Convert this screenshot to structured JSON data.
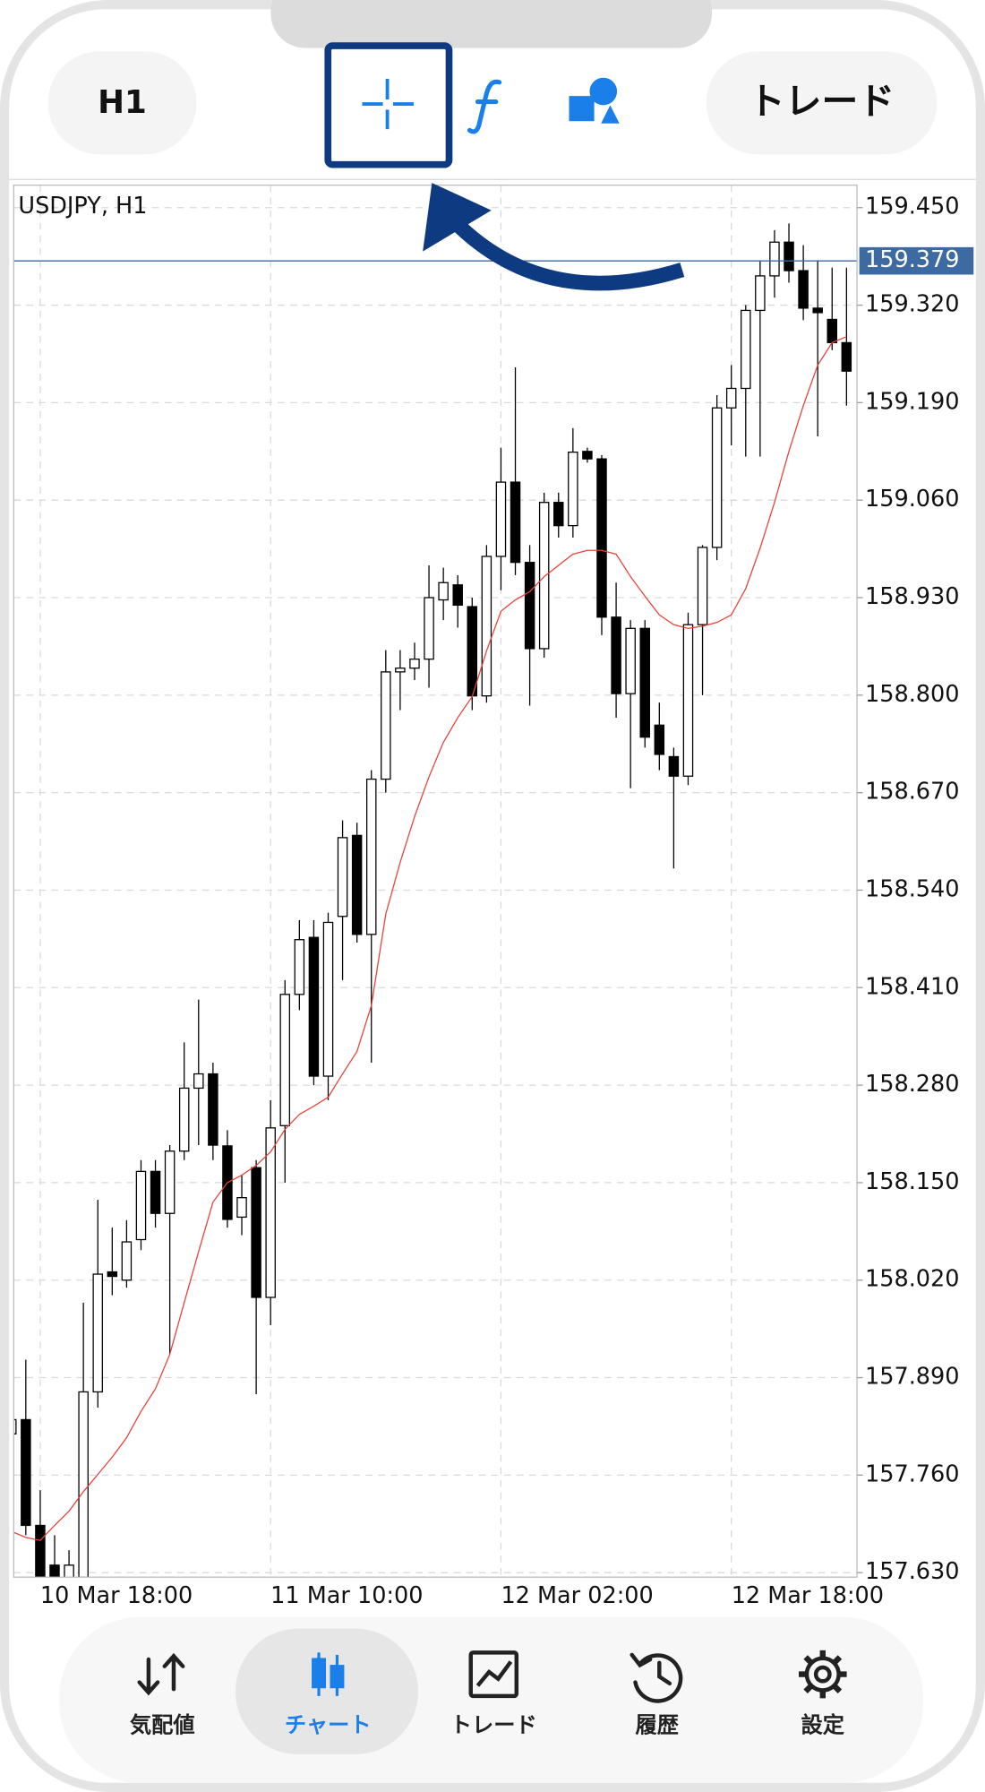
{
  "toolbar": {
    "timeframe": "H1",
    "trade_button": "トレード"
  },
  "chart_data": {
    "type": "candlestick",
    "title": "USDJPY, H1",
    "categories": [
      null,
      null,
      "10 Mar 18:00",
      null,
      null,
      null,
      null,
      null,
      null,
      null,
      null,
      null,
      null,
      null,
      null,
      null,
      null,
      null,
      "11 Mar 10:00",
      null,
      null,
      null,
      null,
      null,
      null,
      null,
      null,
      null,
      null,
      null,
      null,
      null,
      null,
      null,
      "12 Mar 02:00",
      null,
      null,
      null,
      null,
      null,
      null,
      null,
      null,
      null,
      null,
      null,
      null,
      null,
      null,
      null,
      "12 Mar 18:00",
      null,
      null,
      null,
      null,
      null,
      null,
      null,
      null
    ],
    "open": [
      157.815,
      157.834,
      157.693,
      157.64,
      157.61,
      157.624,
      157.871,
      158.031,
      158.02,
      158.074,
      158.165,
      158.109,
      158.192,
      158.276,
      158.295,
      158.199,
      158.104,
      158.17,
      157.997,
      158.226,
      158.401,
      158.477,
      158.292,
      158.505,
      158.613,
      158.481,
      158.688,
      158.831,
      158.836,
      158.848,
      158.927,
      158.947,
      158.918,
      158.799,
      158.985,
      159.084,
      158.977,
      158.862,
      159.057,
      159.026,
      159.125,
      159.115,
      158.904,
      158.802,
      158.889,
      158.76,
      158.718,
      158.692,
      158.894,
      158.997,
      159.183,
      159.209,
      159.313,
      159.359,
      159.404,
      159.366,
      159.316,
      159.301,
      159.27
    ],
    "high": [
      157.84,
      157.914,
      157.74,
      157.68,
      157.66,
      157.99,
      158.127,
      158.09,
      158.1,
      158.18,
      158.18,
      158.2,
      158.337,
      158.394,
      158.31,
      158.22,
      158.16,
      158.18,
      158.26,
      158.42,
      158.5,
      158.5,
      158.51,
      158.633,
      158.63,
      158.7,
      158.86,
      158.86,
      158.87,
      158.973,
      158.97,
      158.96,
      158.93,
      159.0,
      159.13,
      159.237,
      159.0,
      159.07,
      159.07,
      159.156,
      159.13,
      159.12,
      158.95,
      158.9,
      158.9,
      158.79,
      158.73,
      158.91,
      159.0,
      159.2,
      159.24,
      159.32,
      159.38,
      159.42,
      159.429,
      159.4,
      159.38,
      159.37,
      159.37
    ],
    "low": [
      157.8,
      157.68,
      157.6,
      157.6,
      157.6,
      157.6,
      157.85,
      158.0,
      158.01,
      158.06,
      158.09,
      157.921,
      158.18,
      158.2,
      158.18,
      158.09,
      158.08,
      157.868,
      157.96,
      158.15,
      158.38,
      158.28,
      158.26,
      158.42,
      158.47,
      158.31,
      158.67,
      158.78,
      158.82,
      158.81,
      158.9,
      158.89,
      158.78,
      158.79,
      158.94,
      158.96,
      158.786,
      158.85,
      159.01,
      159.01,
      159.11,
      158.88,
      158.77,
      158.676,
      158.73,
      158.7,
      158.569,
      158.68,
      158.8,
      158.98,
      159.133,
      159.118,
      159.118,
      159.33,
      159.35,
      159.3,
      159.145,
      159.26,
      159.186
    ],
    "close": [
      157.834,
      157.693,
      157.61,
      157.61,
      157.64,
      157.871,
      158.028,
      158.025,
      158.071,
      158.165,
      158.109,
      158.192,
      158.276,
      158.295,
      158.2,
      158.101,
      158.13,
      157.997,
      158.223,
      158.401,
      158.474,
      158.292,
      158.497,
      158.61,
      158.481,
      158.688,
      158.831,
      158.836,
      158.848,
      158.93,
      158.95,
      158.92,
      158.799,
      158.985,
      159.084,
      158.977,
      158.862,
      159.057,
      159.026,
      159.124,
      159.115,
      158.904,
      158.802,
      158.889,
      158.744,
      158.721,
      158.692,
      158.894,
      158.997,
      159.183,
      159.209,
      159.313,
      159.359,
      159.404,
      159.366,
      159.316,
      159.31,
      159.27,
      159.232
    ],
    "moving_average": {
      "color": "#e8413a",
      "values": [
        157.685,
        157.677,
        157.673,
        157.693,
        157.712,
        157.738,
        157.761,
        157.784,
        157.81,
        157.845,
        157.875,
        157.921,
        157.99,
        158.058,
        158.124,
        158.15,
        158.16,
        158.173,
        158.191,
        158.221,
        158.241,
        158.252,
        158.264,
        158.295,
        158.325,
        158.386,
        158.508,
        158.577,
        158.638,
        158.691,
        158.737,
        158.77,
        158.798,
        158.859,
        158.912,
        158.927,
        158.938,
        158.958,
        158.973,
        158.988,
        158.993,
        158.993,
        158.988,
        158.958,
        158.932,
        158.907,
        158.894,
        158.889,
        158.892,
        158.897,
        158.907,
        158.942,
        158.996,
        159.057,
        159.125,
        159.186,
        159.24,
        159.27,
        159.278
      ]
    },
    "up_color": "#ffffff",
    "down_color": "#000000",
    "current_price": 159.379,
    "current_price_color": "#3d6aa0",
    "ylim": [
      157.624,
      159.48
    ],
    "yticks": [
      {
        "value": 159.45,
        "label": "159.450"
      },
      {
        "value": 159.32,
        "label": "159.320"
      },
      {
        "value": 159.19,
        "label": "159.190"
      },
      {
        "value": 159.06,
        "label": "159.060"
      },
      {
        "value": 158.93,
        "label": "158.930"
      },
      {
        "value": 158.8,
        "label": "158.800"
      },
      {
        "value": 158.67,
        "label": "158.670"
      },
      {
        "value": 158.54,
        "label": "158.540"
      },
      {
        "value": 158.41,
        "label": "158.410"
      },
      {
        "value": 158.28,
        "label": "158.280"
      },
      {
        "value": 158.15,
        "label": "158.150"
      },
      {
        "value": 158.02,
        "label": "158.020"
      },
      {
        "value": 157.89,
        "label": "157.890"
      },
      {
        "value": 157.76,
        "label": "157.760"
      },
      {
        "value": 157.63,
        "label": "157.630"
      }
    ],
    "grid": true
  },
  "nav": {
    "items": [
      "気配値",
      "チャート",
      "トレード",
      "履歴",
      "設定"
    ],
    "active_index": 1
  }
}
